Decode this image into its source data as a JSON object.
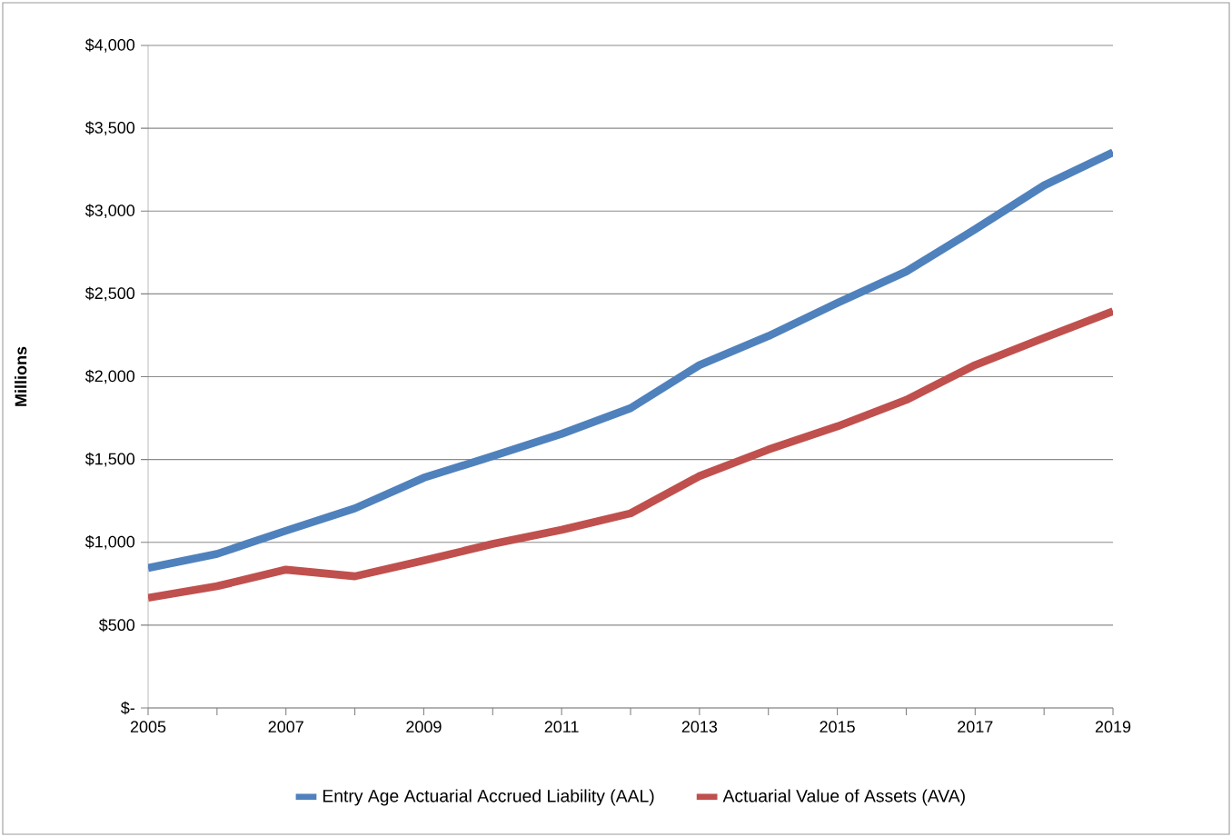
{
  "chart_data": {
    "type": "line",
    "ylabel": "Millions",
    "x": [
      2005,
      2006,
      2007,
      2008,
      2009,
      2010,
      2011,
      2012,
      2013,
      2014,
      2015,
      2016,
      2017,
      2018,
      2019
    ],
    "series": [
      {
        "name": "Entry Age Actuarial Accrued Liability (AAL)",
        "color": "#4f81bd",
        "values": [
          845,
          930,
          1070,
          1205,
          1390,
          1520,
          1655,
          1810,
          2070,
          2245,
          2445,
          2635,
          2890,
          3155,
          3355
        ]
      },
      {
        "name": "Actuarial Value of Assets (AVA)",
        "color": "#c0504d",
        "values": [
          665,
          735,
          835,
          795,
          890,
          990,
          1075,
          1175,
          1400,
          1560,
          1700,
          1860,
          2070,
          2235,
          2395
        ]
      }
    ],
    "xlim": [
      2005,
      2019
    ],
    "xticks": [
      2005,
      {
        "value": 2006,
        "label": null
      },
      2007,
      {
        "value": 2008,
        "label": null
      },
      2009,
      {
        "value": 2010,
        "label": null
      },
      2011,
      {
        "value": 2012,
        "label": null
      },
      2013,
      {
        "value": 2014,
        "label": null
      },
      2015,
      {
        "value": 2016,
        "label": null
      },
      2017,
      {
        "value": 2018,
        "label": null
      },
      2019
    ],
    "ylim": [
      0,
      4000
    ],
    "yticks": [
      {
        "value": 0,
        "label": "$-"
      },
      {
        "value": 500,
        "label": "$500"
      },
      {
        "value": 1000,
        "label": "$1,000"
      },
      {
        "value": 1500,
        "label": "$1,500"
      },
      {
        "value": 2000,
        "label": "$2,000"
      },
      {
        "value": 2500,
        "label": "$2,500"
      },
      {
        "value": 3000,
        "label": "$3,000"
      },
      {
        "value": 3500,
        "label": "$3,500"
      },
      {
        "value": 4000,
        "label": "$4,000"
      }
    ],
    "grid": "y",
    "legend": "bottom",
    "marker": "none",
    "line_style": "solid"
  }
}
